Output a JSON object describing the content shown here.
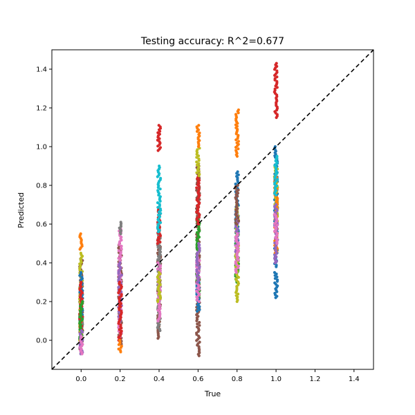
{
  "chart_data": {
    "type": "scatter",
    "title": "Testing accuracy: R^2=0.677",
    "xlabel": "True",
    "ylabel": "Predicted",
    "xlim": [
      -0.15,
      1.5
    ],
    "ylim": [
      -0.15,
      1.5
    ],
    "xticks": [
      "0.0",
      "0.2",
      "0.4",
      "0.6",
      "0.8",
      "1.0",
      "1.2",
      "1.4"
    ],
    "yticks": [
      "0.0",
      "0.2",
      "0.4",
      "0.6",
      "0.8",
      "1.0",
      "1.2",
      "1.4"
    ],
    "grid": false,
    "reference_line": {
      "style": "dashed",
      "color": "#000000",
      "from": [
        -0.15,
        -0.15
      ],
      "to": [
        1.5,
        1.5
      ]
    },
    "palette": [
      "#1f77b4",
      "#ff7f0e",
      "#2ca02c",
      "#d62728",
      "#9467bd",
      "#8c564b",
      "#e377c2",
      "#7f7f7f",
      "#bcbd22",
      "#17becf"
    ],
    "groups": [
      {
        "x": 0.0,
        "segments": [
          {
            "color": "#8c564b",
            "lo": -0.06,
            "hi": 0.42
          },
          {
            "color": "#7f7f7f",
            "lo": -0.02,
            "hi": 0.3
          },
          {
            "color": "#bcbd22",
            "lo": 0.0,
            "hi": 0.45
          },
          {
            "color": "#1f77b4",
            "lo": 0.1,
            "hi": 0.35
          },
          {
            "color": "#d62728",
            "lo": 0.05,
            "hi": 0.3
          },
          {
            "color": "#2ca02c",
            "lo": 0.0,
            "hi": 0.2
          },
          {
            "color": "#9467bd",
            "lo": -0.07,
            "hi": 0.05
          },
          {
            "color": "#e377c2",
            "lo": -0.07,
            "hi": 0.02
          },
          {
            "color": "#ff7f0e",
            "lo": 0.47,
            "hi": 0.55
          }
        ]
      },
      {
        "x": 0.2,
        "segments": [
          {
            "color": "#8c564b",
            "lo": -0.02,
            "hi": 0.5
          },
          {
            "color": "#e377c2",
            "lo": 0.0,
            "hi": 0.58
          },
          {
            "color": "#9467bd",
            "lo": 0.1,
            "hi": 0.4
          },
          {
            "color": "#d62728",
            "lo": 0.0,
            "hi": 0.3
          },
          {
            "color": "#7f7f7f",
            "lo": 0.55,
            "hi": 0.61
          },
          {
            "color": "#ff7f0e",
            "lo": -0.06,
            "hi": 0.0
          }
        ]
      },
      {
        "x": 0.4,
        "segments": [
          {
            "color": "#8c564b",
            "lo": 0.01,
            "hi": 0.6
          },
          {
            "color": "#7f7f7f",
            "lo": 0.05,
            "hi": 0.55
          },
          {
            "color": "#e377c2",
            "lo": 0.1,
            "hi": 0.4
          },
          {
            "color": "#d62728",
            "lo": 0.5,
            "hi": 0.68
          },
          {
            "color": "#17becf",
            "lo": 0.56,
            "hi": 0.9
          },
          {
            "color": "#d62728",
            "lo": 0.98,
            "hi": 1.11
          },
          {
            "color": "#bcbd22",
            "lo": 0.2,
            "hi": 0.35
          }
        ]
      },
      {
        "x": 0.6,
        "segments": [
          {
            "color": "#8c564b",
            "lo": -0.08,
            "hi": 0.9
          },
          {
            "color": "#2ca02c",
            "lo": 0.2,
            "hi": 0.62
          },
          {
            "color": "#1f77b4",
            "lo": 0.15,
            "hi": 0.3
          },
          {
            "color": "#d62728",
            "lo": 0.6,
            "hi": 0.85
          },
          {
            "color": "#bcbd22",
            "lo": 0.85,
            "hi": 1.0
          },
          {
            "color": "#ff7f0e",
            "lo": 1.0,
            "hi": 1.11
          },
          {
            "color": "#e377c2",
            "lo": 0.2,
            "hi": 0.45
          },
          {
            "color": "#9467bd",
            "lo": 0.3,
            "hi": 0.5
          }
        ]
      },
      {
        "x": 0.8,
        "segments": [
          {
            "color": "#1f77b4",
            "lo": 0.5,
            "hi": 0.87
          },
          {
            "color": "#2ca02c",
            "lo": 0.3,
            "hi": 0.6
          },
          {
            "color": "#bcbd22",
            "lo": 0.2,
            "hi": 0.7
          },
          {
            "color": "#ff7f0e",
            "lo": 0.95,
            "hi": 1.19
          },
          {
            "color": "#9467bd",
            "lo": 0.45,
            "hi": 0.65
          },
          {
            "color": "#8c564b",
            "lo": 0.6,
            "hi": 0.8
          },
          {
            "color": "#e377c2",
            "lo": 0.35,
            "hi": 0.55
          }
        ]
      },
      {
        "x": 1.0,
        "segments": [
          {
            "color": "#d62728",
            "lo": 1.15,
            "hi": 1.43
          },
          {
            "color": "#1f77b4",
            "lo": 0.22,
            "hi": 0.35
          },
          {
            "color": "#1f77b4",
            "lo": 0.38,
            "hi": 1.0
          },
          {
            "color": "#bcbd22",
            "lo": 0.6,
            "hi": 0.9
          },
          {
            "color": "#ff7f0e",
            "lo": 0.45,
            "hi": 0.85
          },
          {
            "color": "#9467bd",
            "lo": 0.4,
            "hi": 0.7
          },
          {
            "color": "#17becf",
            "lo": 0.75,
            "hi": 0.95
          },
          {
            "color": "#e377c2",
            "lo": 0.5,
            "hi": 0.65
          }
        ]
      }
    ]
  }
}
